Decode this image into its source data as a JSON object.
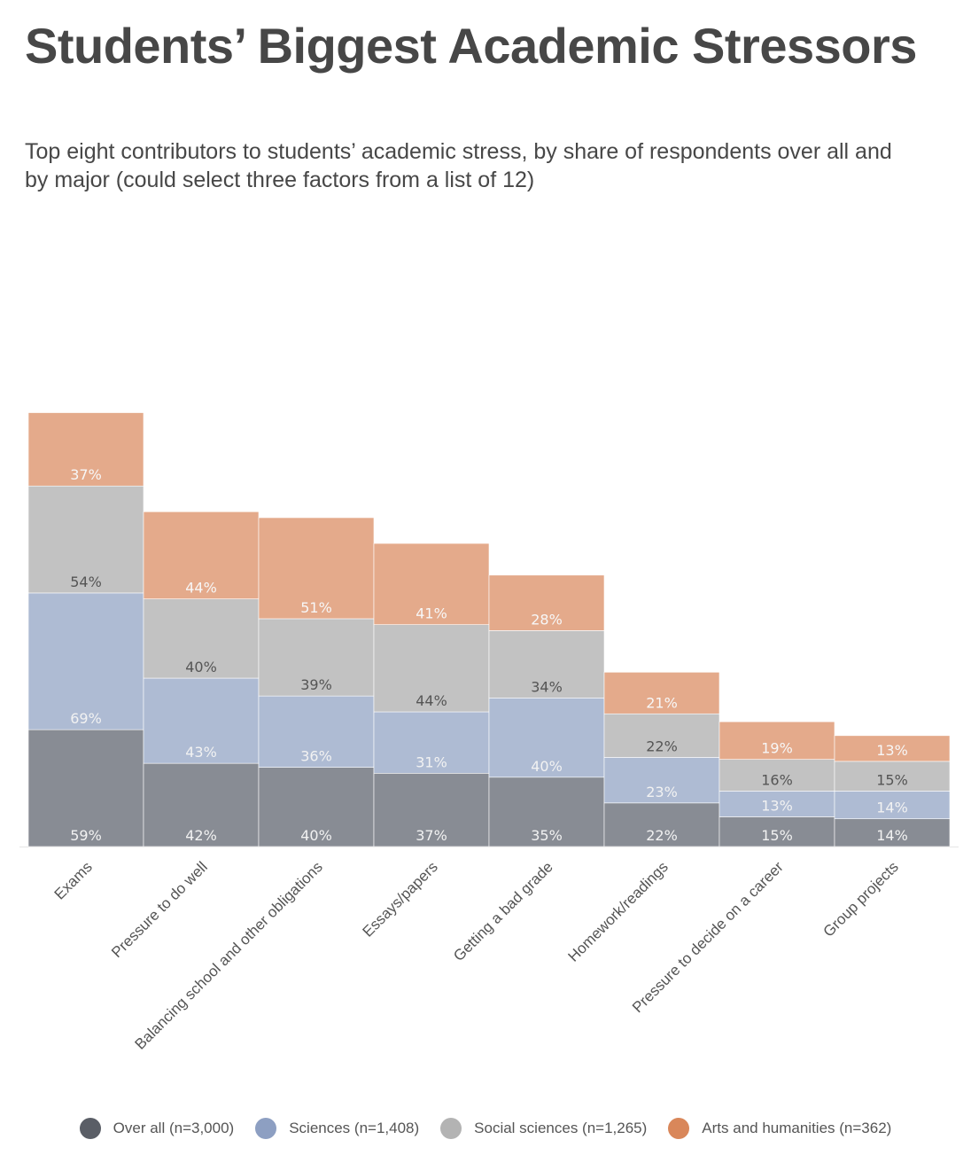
{
  "title": "Students’ Biggest Academic Stressors",
  "subtitle": "Top eight contributors to students’ academic stress, by share of respondents over all and by major (could select three factors from a list of 12)",
  "chart_data": {
    "type": "bar",
    "stacked": true,
    "categories": [
      "Exams",
      "Pressure to do well",
      "Balancing school and other obligations",
      "Essays/papers",
      "Getting a bad grade",
      "Homework/readings",
      "Pressure to decide on a career",
      "Group projects"
    ],
    "series": [
      {
        "name": "Over all (n=3,000)",
        "color": "#888c94",
        "label_color": "#f2f2f2",
        "values": [
          59,
          42,
          40,
          37,
          35,
          22,
          15,
          14
        ],
        "labels": [
          "59%",
          "42%",
          "40%",
          "37%",
          "35%",
          "22%",
          "15%",
          "14%"
        ]
      },
      {
        "name": "Sciences (n=1,408)",
        "color": "#aebbd3",
        "label_color": "#f2f2f2",
        "values": [
          69,
          43,
          36,
          31,
          40,
          23,
          13,
          14
        ],
        "labels": [
          "69%",
          "43%",
          "36%",
          "31%",
          "40%",
          "23%",
          "13%",
          "14%"
        ]
      },
      {
        "name": "Social sciences (n=1,265)",
        "color": "#c2c2c2",
        "label_color": "#555555",
        "values": [
          54,
          40,
          39,
          44,
          34,
          22,
          16,
          15
        ],
        "labels": [
          "54%",
          "40%",
          "39%",
          "44%",
          "34%",
          "22%",
          "16%",
          "15%"
        ]
      },
      {
        "name": "Arts and humanities (n=362)",
        "color": "#e4aa8b",
        "label_color": "#f7f7f7",
        "values": [
          37,
          44,
          51,
          41,
          28,
          21,
          19,
          13
        ],
        "labels": [
          "37%",
          "44%",
          "51%",
          "41%",
          "28%",
          "21%",
          "19%",
          "13%"
        ]
      }
    ],
    "legend": [
      {
        "label": "Over all (n=3,000)",
        "color": "#5a5e66"
      },
      {
        "label": "Sciences (n=1,408)",
        "color": "#8d9fc2"
      },
      {
        "label": "Social sciences (n=1,265)",
        "color": "#b3b3b3"
      },
      {
        "label": "Arts and humanities (n=362)",
        "color": "#d9875a"
      }
    ],
    "legend_position": "bottom",
    "title": "Students’ Biggest Academic Stressors",
    "xlabel": "",
    "ylabel": "",
    "grid": false
  }
}
